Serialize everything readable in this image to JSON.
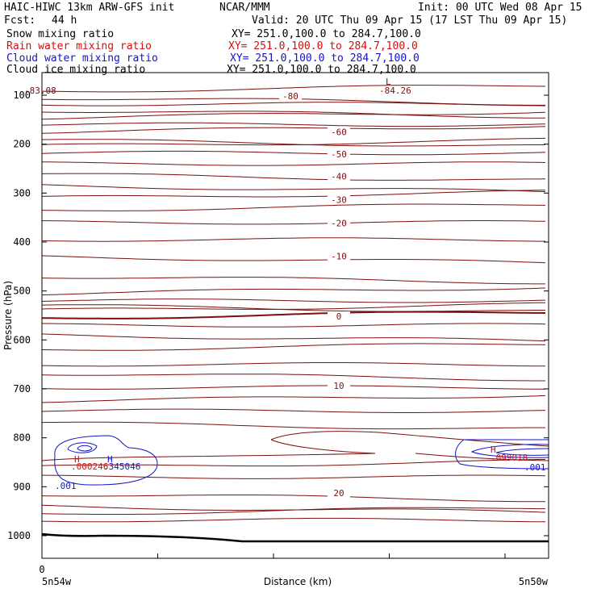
{
  "header": {
    "model": "HAIC-HIWC 13km ARW-GFS init",
    "org": "NCAR/MMM",
    "init": "Init: 00 UTC Wed 08 Apr 15",
    "fcst_label": "Fcst:",
    "fcst_value": "44 h",
    "valid": "Valid: 20 UTC Thu 09 Apr 15 (17 LST Thu 09 Apr 15)",
    "fields": [
      {
        "name": "Snow mixing ratio",
        "xy": "XY= 251.0,100.0 to 284.7,100.0",
        "color": "#000000"
      },
      {
        "name": "Rain water mixing ratio",
        "xy": "XY= 251.0,100.0 to 284.7,100.0",
        "color": "#d01010"
      },
      {
        "name": "Cloud water mixing ratio",
        "xy": "XY= 251.0,100.0 to 284.7,100.0",
        "color": "#1515c8"
      },
      {
        "name": "Cloud ice mixing ratio",
        "xy": "XY= 251.0,100.0 to 284.7,100.0",
        "color": "#000000"
      }
    ]
  },
  "chart_data": {
    "type": "contour",
    "ylabel": "Pressure (hPa)",
    "xlabel": "Distance (km)",
    "y_axis": "pressure, inverted (top to bottom increasing)",
    "ylim": [
      1050,
      50
    ],
    "y_ticks": [
      100,
      200,
      300,
      400,
      500,
      600,
      700,
      800,
      900,
      1000
    ],
    "x_ticks": [
      "0"
    ],
    "x_end_labels": {
      "left": "5n54w",
      "right": "5n50w"
    },
    "temperature_contours": [
      {
        "label": "-80",
        "pressure": 105
      },
      {
        "label": "-60",
        "pressure": 175
      },
      {
        "label": "-50",
        "pressure": 218
      },
      {
        "label": "-40",
        "pressure": 262
      },
      {
        "label": "-30",
        "pressure": 310
      },
      {
        "label": "-20",
        "pressure": 360
      },
      {
        "label": "-10",
        "pressure": 430
      },
      {
        "label": "0",
        "pressure": 555
      },
      {
        "label": "10",
        "pressure": 697
      },
      {
        "label": "20",
        "pressure": 915
      }
    ],
    "low_marker": {
      "label": "L",
      "value": "-84.26"
    },
    "left_top_value": "-83.08",
    "rain_max_left": {
      "label": "H",
      "value": ".000246"
    },
    "cloud_max_left": {
      "label": "H",
      "value": ".345046"
    },
    "cloud_max_right": {
      "label": "H",
      "value": ".099018"
    },
    "cloud_contour_label": ".001",
    "colors": {
      "temperature": "#7a1010",
      "rain": "#d01010",
      "cloud": "#1515c8",
      "ground": "#000000"
    }
  }
}
